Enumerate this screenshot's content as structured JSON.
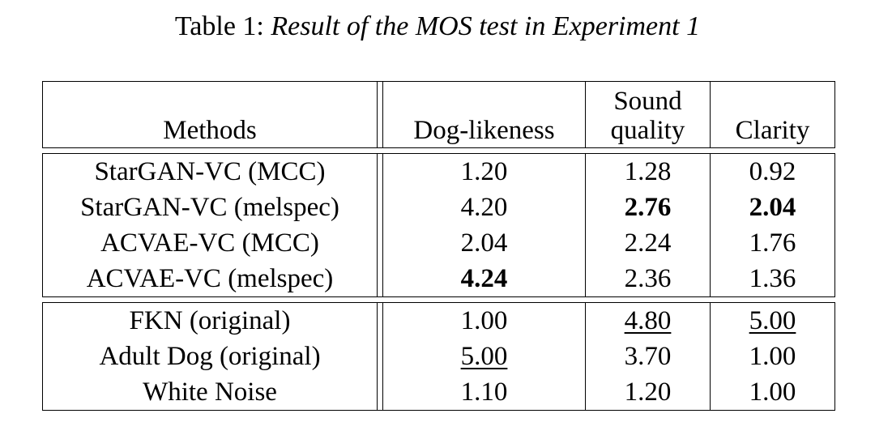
{
  "caption": {
    "prefix": "Table 1:",
    "title": "Result of the MOS test in Experiment 1"
  },
  "table": {
    "headers": {
      "methods": "Methods",
      "dog_likeness": "Dog-likeness",
      "sound_quality_line1": "Sound",
      "sound_quality_line2": "quality",
      "clarity": "Clarity"
    },
    "group1": [
      {
        "method": "StarGAN-VC (MCC)",
        "dog_likeness": "1.20",
        "sound_quality": "1.28",
        "clarity": "0.92"
      },
      {
        "method": "StarGAN-VC (melspec)",
        "dog_likeness": "4.20",
        "sound_quality": "2.76",
        "clarity": "2.04"
      },
      {
        "method": "ACVAE-VC (MCC)",
        "dog_likeness": "2.04",
        "sound_quality": "2.24",
        "clarity": "1.76"
      },
      {
        "method": "ACVAE-VC (melspec)",
        "dog_likeness": "4.24",
        "sound_quality": "2.36",
        "clarity": "1.36"
      }
    ],
    "group2": [
      {
        "method": "FKN (original)",
        "dog_likeness": "1.00",
        "sound_quality": "4.80",
        "clarity": "5.00"
      },
      {
        "method": "Adult Dog (original)",
        "dog_likeness": "5.00",
        "sound_quality": "3.70",
        "clarity": "1.00"
      },
      {
        "method": "White Noise",
        "dog_likeness": "1.10",
        "sound_quality": "1.20",
        "clarity": "1.00"
      }
    ]
  }
}
